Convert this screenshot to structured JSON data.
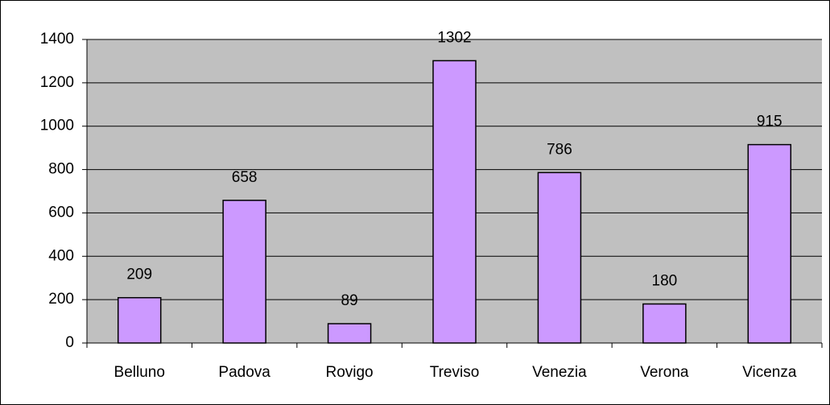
{
  "chart_data": {
    "type": "bar",
    "categories": [
      "Belluno",
      "Padova",
      "Rovigo",
      "Treviso",
      "Venezia",
      "Verona",
      "Vicenza"
    ],
    "values": [
      209,
      658,
      89,
      1302,
      786,
      180,
      915
    ],
    "color": "#cc99ff",
    "ylim": [
      0,
      1400
    ],
    "yticks": [
      0,
      200,
      400,
      600,
      800,
      1000,
      1200,
      1400
    ],
    "grid": true
  }
}
